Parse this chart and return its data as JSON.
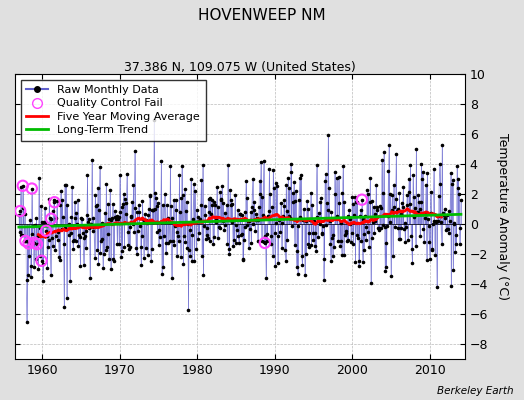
{
  "title": "HOVENWEEP NM",
  "subtitle": "37.386 N, 109.075 W (United States)",
  "ylabel": "Temperature Anomaly (°C)",
  "attribution": "Berkeley Earth",
  "xlim": [
    1956.5,
    2014.5
  ],
  "ylim": [
    -9,
    10
  ],
  "yticks": [
    -8,
    -6,
    -4,
    -2,
    0,
    2,
    4,
    6,
    8,
    10
  ],
  "xticks": [
    1960,
    1970,
    1980,
    1990,
    2000,
    2010
  ],
  "seed": 42,
  "n_months": 684,
  "start_year": 1957.0,
  "raw_color": "#6060cc",
  "ma_color": "#ff0000",
  "trend_color": "#00bb00",
  "qc_color": "#ff44ff",
  "dot_color": "#000000",
  "background_color": "#e0e0e0",
  "plot_bg_color": "#ffffff",
  "title_fontsize": 11,
  "subtitle_fontsize": 9,
  "legend_fontsize": 8
}
